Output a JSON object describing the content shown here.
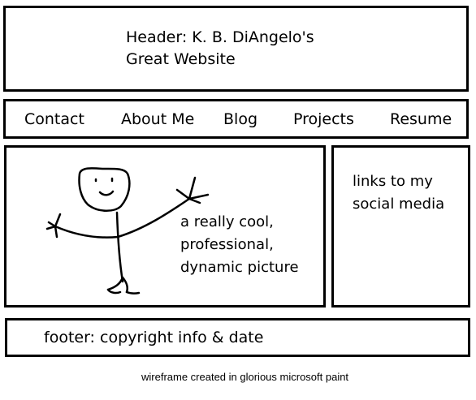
{
  "header": {
    "line1": "Header: K. B. DiAngelo's",
    "line2": "Great Website"
  },
  "nav": {
    "items": [
      {
        "label": "Contact"
      },
      {
        "label": "About Me"
      },
      {
        "label": "Blog"
      },
      {
        "label": "Projects"
      },
      {
        "label": "Resume"
      }
    ]
  },
  "main": {
    "caption_lines": [
      "a really cool,",
      "professional,",
      "dynamic picture"
    ],
    "picture_icon": "stick-figure-icon"
  },
  "sidebar": {
    "lines": [
      "links to my",
      "social media"
    ]
  },
  "footer": {
    "text": "footer: copyright info & date"
  },
  "credit": "wireframe created in glorious microsoft paint"
}
